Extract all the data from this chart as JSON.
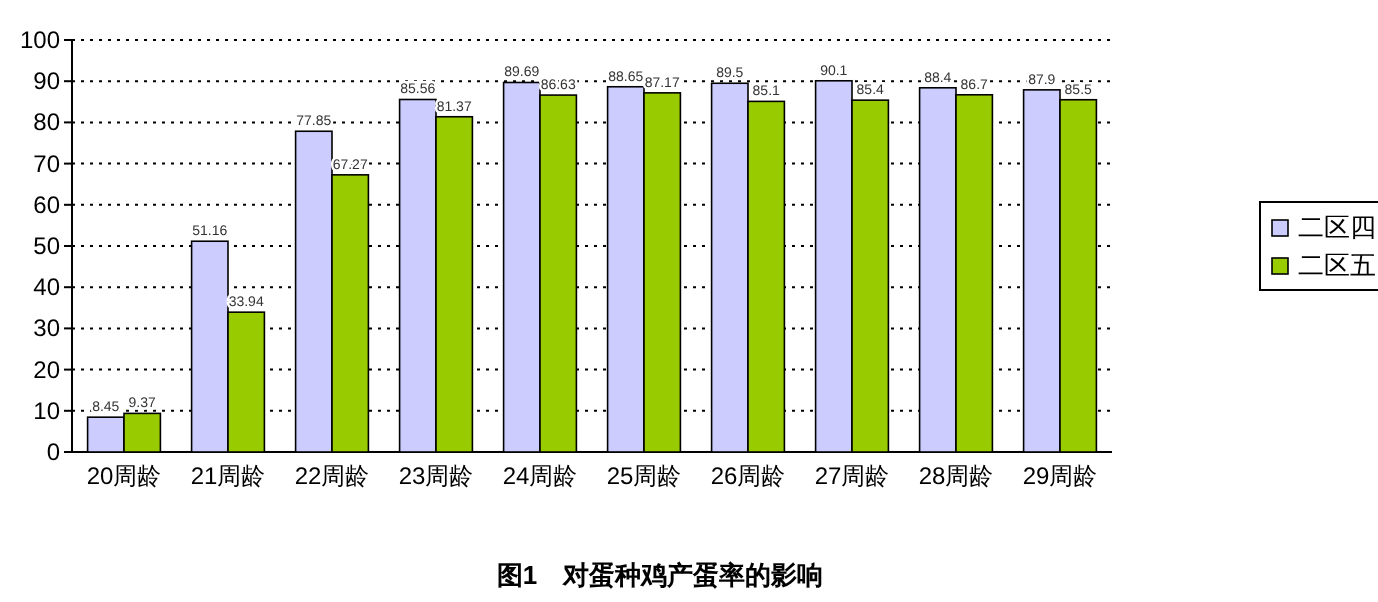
{
  "chart_data": {
    "type": "bar",
    "title": "图1　对蛋种鸡产蛋率的影响",
    "categories": [
      "20周龄",
      "21周龄",
      "22周龄",
      "23周龄",
      "24周龄",
      "25周龄",
      "26周龄",
      "27周龄",
      "28周龄",
      "29周龄"
    ],
    "series": [
      {
        "name": "二区四",
        "color": "#ccccff",
        "values": [
          8.45,
          51.16,
          77.85,
          85.56,
          89.69,
          88.65,
          89.5,
          90.1,
          88.4,
          87.9
        ]
      },
      {
        "name": "二区五",
        "color": "#99cc00",
        "values": [
          9.37,
          33.94,
          67.27,
          81.37,
          86.63,
          87.17,
          85.1,
          85.4,
          86.7,
          85.5
        ]
      }
    ],
    "ylim": [
      0,
      100
    ],
    "yticks": [
      0,
      10,
      20,
      30,
      40,
      50,
      60,
      70,
      80,
      90,
      100
    ],
    "grid": "y",
    "legend": "right",
    "data_labels": true
  }
}
